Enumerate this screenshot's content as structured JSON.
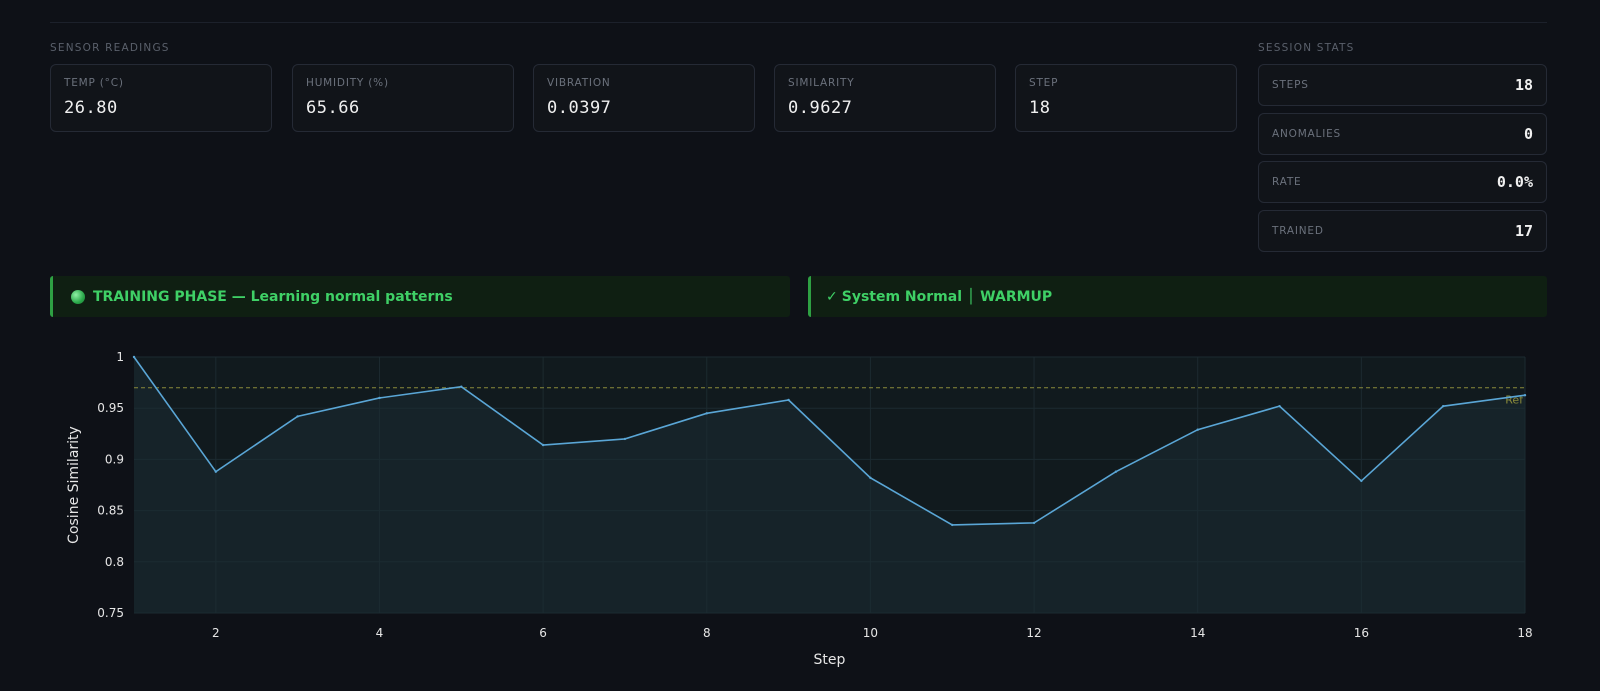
{
  "sensor_section": {
    "title": "SENSOR READINGS",
    "cards": [
      {
        "label": "TEMP (°C)",
        "value": "26.80"
      },
      {
        "label": "HUMIDITY (%)",
        "value": "65.66"
      },
      {
        "label": "VIBRATION",
        "value": "0.0397"
      },
      {
        "label": "SIMILARITY",
        "value": "0.9627"
      },
      {
        "label": "STEP",
        "value": "18"
      }
    ]
  },
  "stats_section": {
    "title": "SESSION STATS",
    "items": [
      {
        "label": "STEPS",
        "value": "18"
      },
      {
        "label": "ANOMALIES",
        "value": "0"
      },
      {
        "label": "RATE",
        "value": "0.0%"
      },
      {
        "label": "TRAINED",
        "value": "17"
      }
    ]
  },
  "banners": {
    "phase": "TRAINING PHASE — Learning normal patterns",
    "status_check": "✓",
    "status": "System Normal │ WARMUP"
  },
  "colors": {
    "accent_green": "#3fd066",
    "line": "#5aa6d6",
    "reference": "#8a8a3a"
  },
  "chart_data": {
    "type": "line",
    "xlabel": "Step",
    "ylabel": "Cosine Similarity",
    "x": [
      1,
      2,
      3,
      4,
      5,
      6,
      7,
      8,
      9,
      10,
      11,
      12,
      13,
      14,
      15,
      16,
      17,
      18
    ],
    "values": [
      1.0,
      0.888,
      0.942,
      0.96,
      0.971,
      0.914,
      0.92,
      0.945,
      0.958,
      0.882,
      0.836,
      0.838,
      0.888,
      0.929,
      0.952,
      0.879,
      0.952,
      0.9627
    ],
    "xlim": [
      1,
      18
    ],
    "ylim": [
      0.75,
      1.0
    ],
    "xticks": [
      2,
      4,
      6,
      8,
      10,
      12,
      14,
      16,
      18
    ],
    "yticks": [
      0.75,
      0.8,
      0.85,
      0.9,
      0.95,
      1.0
    ],
    "ytick_labels": [
      "0.75",
      "0.8",
      "0.85",
      "0.9",
      "0.95",
      "1"
    ],
    "reference_line": {
      "value": 0.97,
      "label": "Ref"
    }
  }
}
